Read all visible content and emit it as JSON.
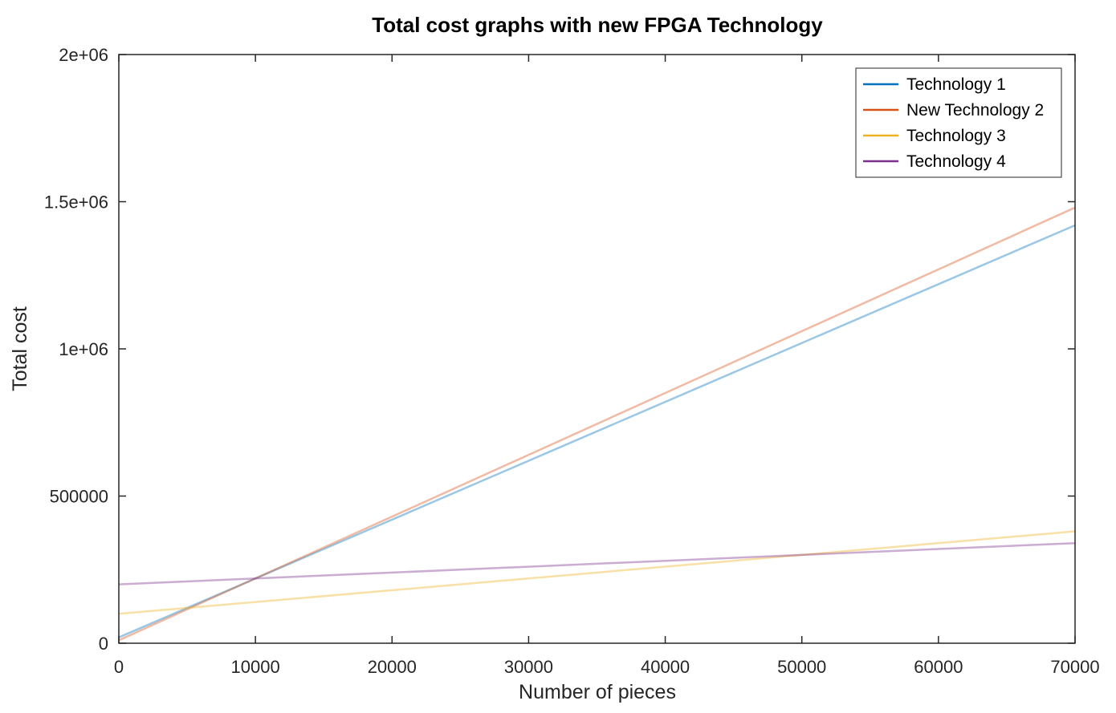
{
  "chart_data": {
    "type": "line",
    "title": "Total cost graphs with new FPGA Technology",
    "xlabel": "Number of pieces",
    "ylabel": "Total cost",
    "xlim": [
      0,
      70000
    ],
    "ylim": [
      0,
      2000000
    ],
    "x_ticks": [
      0,
      10000,
      20000,
      30000,
      40000,
      50000,
      60000,
      70000
    ],
    "x_tick_labels": [
      "0",
      "10000",
      "20000",
      "30000",
      "40000",
      "50000",
      "60000",
      "70000"
    ],
    "y_ticks": [
      0,
      500000,
      1000000,
      1500000,
      2000000
    ],
    "y_tick_labels": [
      "0",
      "500000",
      "1e+06",
      "1.5e+06",
      "2e+06"
    ],
    "grid": false,
    "legend_position": "top-right",
    "x": [
      0,
      70000
    ],
    "series": [
      {
        "name": "Technology 1",
        "color": "#0072BD",
        "values": [
          20000,
          1420000
        ]
      },
      {
        "name": "New Technology 2",
        "color": "#D95319",
        "values": [
          10000,
          1480000
        ]
      },
      {
        "name": "Technology 3",
        "color": "#EDB120",
        "values": [
          100000,
          380000
        ]
      },
      {
        "name": "Technology 4",
        "color": "#7E2F8E",
        "values": [
          200000,
          340000
        ]
      }
    ]
  }
}
